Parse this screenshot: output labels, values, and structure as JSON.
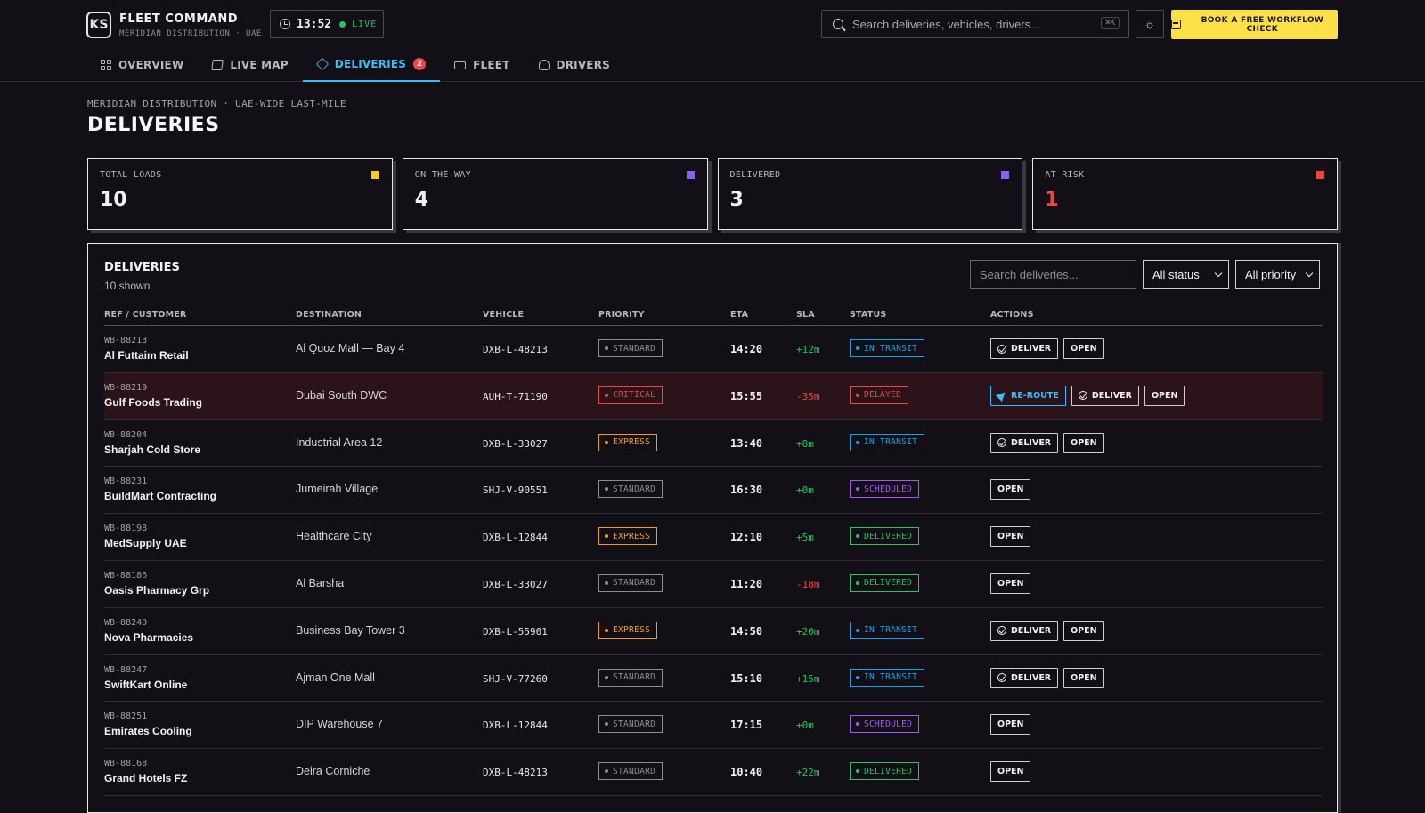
{
  "brand": {
    "logo": "KS",
    "title": "FLEET COMMAND",
    "subtitle": "MERIDIAN DISTRIBUTION · UAE"
  },
  "clock": {
    "time": "13:52",
    "live_label": "LIVE"
  },
  "search": {
    "placeholder": "Search deliveries, vehicles, drivers...",
    "shortcut": "⌘K"
  },
  "cta": {
    "label": "BOOK A FREE WORKFLOW CHECK"
  },
  "nav": [
    {
      "label": "OVERVIEW",
      "icon": "grid-icon"
    },
    {
      "label": "LIVE MAP",
      "icon": "map-icon"
    },
    {
      "label": "DELIVERIES",
      "icon": "package-icon",
      "badge": "2",
      "active": true
    },
    {
      "label": "FLEET",
      "icon": "truck-icon"
    },
    {
      "label": "DRIVERS",
      "icon": "user-icon"
    }
  ],
  "breadcrumb": "MERIDIAN DISTRIBUTION · UAE-WIDE LAST-MILE",
  "page_title": "DELIVERIES",
  "kpis": [
    {
      "label": "TOTAL LOADS",
      "value": "10",
      "color": "#facc15"
    },
    {
      "label": "ON THE WAY",
      "value": "4",
      "color": "#8b5cf6"
    },
    {
      "label": "DELIVERED",
      "value": "3",
      "color": "#8b5cf6"
    },
    {
      "label": "AT RISK",
      "value": "1",
      "color": "#ef4444"
    }
  ],
  "table": {
    "title": "DELIVERIES",
    "count": "10 shown",
    "search_placeholder": "Search deliveries...",
    "status_filter": "All status",
    "priority_filter": "All priority",
    "columns": [
      "REF / CUSTOMER",
      "DESTINATION",
      "VEHICLE",
      "PRIORITY",
      "ETA",
      "SLA",
      "STATUS",
      "ACTIONS"
    ],
    "rows": [
      {
        "ref": "WB-88213",
        "customer": "Al Futtaim Retail",
        "destination": "Al Quoz Mall — Bay 4",
        "vehicle": "DXB-L-48213",
        "priority": "STANDARD",
        "eta": "14:20",
        "sla": "+12m",
        "status": "IN TRANSIT",
        "actions": [
          "DELIVER",
          "OPEN"
        ]
      },
      {
        "ref": "WB-88219",
        "customer": "Gulf Foods Trading",
        "destination": "Dubai South DWC",
        "vehicle": "AUH-T-71190",
        "priority": "CRITICAL",
        "eta": "15:55",
        "sla": "-35m",
        "status": "DELAYED",
        "actions": [
          "RE-ROUTE",
          "DELIVER",
          "OPEN"
        ],
        "alert": true
      },
      {
        "ref": "WB-88204",
        "customer": "Sharjah Cold Store",
        "destination": "Industrial Area 12",
        "vehicle": "DXB-L-33027",
        "priority": "EXPRESS",
        "eta": "13:40",
        "sla": "+8m",
        "status": "IN TRANSIT",
        "actions": [
          "DELIVER",
          "OPEN"
        ]
      },
      {
        "ref": "WB-88231",
        "customer": "BuildMart Contracting",
        "destination": "Jumeirah Village",
        "vehicle": "SHJ-V-90551",
        "priority": "STANDARD",
        "eta": "16:30",
        "sla": "+0m",
        "status": "SCHEDULED",
        "actions": [
          "OPEN"
        ]
      },
      {
        "ref": "WB-88198",
        "customer": "MedSupply UAE",
        "destination": "Healthcare City",
        "vehicle": "DXB-L-12844",
        "priority": "EXPRESS",
        "eta": "12:10",
        "sla": "+5m",
        "status": "DELIVERED",
        "actions": [
          "OPEN"
        ]
      },
      {
        "ref": "WB-88186",
        "customer": "Oasis Pharmacy Grp",
        "destination": "Al Barsha",
        "vehicle": "DXB-L-33027",
        "priority": "STANDARD",
        "eta": "11:20",
        "sla": "-18m",
        "status": "DELIVERED",
        "actions": [
          "OPEN"
        ]
      },
      {
        "ref": "WB-88240",
        "customer": "Nova Pharmacies",
        "destination": "Business Bay Tower 3",
        "vehicle": "DXB-L-55901",
        "priority": "EXPRESS",
        "eta": "14:50",
        "sla": "+20m",
        "status": "IN TRANSIT",
        "actions": [
          "DELIVER",
          "OPEN"
        ]
      },
      {
        "ref": "WB-88247",
        "customer": "SwiftKart Online",
        "destination": "Ajman One Mall",
        "vehicle": "SHJ-V-77260",
        "priority": "STANDARD",
        "eta": "15:10",
        "sla": "+15m",
        "status": "IN TRANSIT",
        "actions": [
          "DELIVER",
          "OPEN"
        ]
      },
      {
        "ref": "WB-88251",
        "customer": "Emirates Cooling",
        "destination": "DIP Warehouse 7",
        "vehicle": "DXB-L-12844",
        "priority": "STANDARD",
        "eta": "17:15",
        "sla": "+0m",
        "status": "SCHEDULED",
        "actions": [
          "OPEN"
        ]
      },
      {
        "ref": "WB-88168",
        "customer": "Grand Hotels FZ",
        "destination": "Deira Corniche",
        "vehicle": "DXB-L-48213",
        "priority": "STANDARD",
        "eta": "10:40",
        "sla": "+22m",
        "status": "DELIVERED",
        "actions": [
          "OPEN"
        ]
      }
    ]
  },
  "colors": {
    "accent": "#38bdf8",
    "cta": "#fde047",
    "STANDARD": "#8d8b94",
    "CRITICAL": "#ef4444",
    "EXPRESS": "#f59e0b",
    "IN TRANSIT": "#0ea5e9",
    "DELAYED": "#ef4444",
    "SCHEDULED": "#a855f7",
    "DELIVERED": "#22c55e",
    "sla_positive": "#22c55e",
    "sla_negative": "#ef4444"
  }
}
